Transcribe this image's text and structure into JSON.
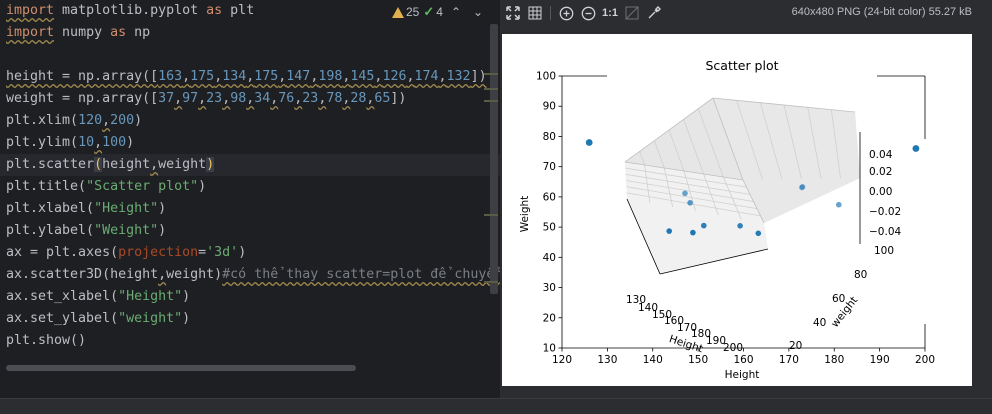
{
  "editor": {
    "inspections": {
      "warnings": "25",
      "weak_warnings": "4"
    },
    "lines": [
      {
        "segments": [
          {
            "t": "import",
            "c": "kw warn"
          },
          {
            "t": " matplotlib.pyplot ",
            "c": ""
          },
          {
            "t": "as",
            "c": "kw"
          },
          {
            "t": " plt",
            "c": ""
          }
        ]
      },
      {
        "segments": [
          {
            "t": "import",
            "c": "kw warn"
          },
          {
            "t": " numpy ",
            "c": ""
          },
          {
            "t": "as",
            "c": "kw"
          },
          {
            "t": " np",
            "c": ""
          }
        ]
      },
      {
        "segments": []
      },
      {
        "segments": [
          {
            "t": "height = np.array([",
            "c": "warn"
          },
          {
            "t": "163",
            "c": "num warn"
          },
          {
            "t": ",",
            "c": "warn"
          },
          {
            "t": "175",
            "c": "num warn"
          },
          {
            "t": ",",
            "c": "warn"
          },
          {
            "t": "134",
            "c": "num warn"
          },
          {
            "t": ",",
            "c": "warn"
          },
          {
            "t": "175",
            "c": "num warn"
          },
          {
            "t": ",",
            "c": "warn"
          },
          {
            "t": "147",
            "c": "num warn"
          },
          {
            "t": ",",
            "c": "warn"
          },
          {
            "t": "198",
            "c": "num warn"
          },
          {
            "t": ",",
            "c": "warn"
          },
          {
            "t": "145",
            "c": "num warn"
          },
          {
            "t": ",",
            "c": "warn"
          },
          {
            "t": "126",
            "c": "num warn"
          },
          {
            "t": ",",
            "c": "warn"
          },
          {
            "t": "174",
            "c": "num warn"
          },
          {
            "t": ",",
            "c": "warn"
          },
          {
            "t": "132",
            "c": "num warn"
          },
          {
            "t": "])",
            "c": "warn"
          }
        ]
      },
      {
        "segments": [
          {
            "t": "weight = np.array([",
            "c": ""
          },
          {
            "t": "37",
            "c": "num"
          },
          {
            "t": ",",
            "c": "warn"
          },
          {
            "t": "97",
            "c": "num"
          },
          {
            "t": ",",
            "c": "warn"
          },
          {
            "t": "23",
            "c": "num"
          },
          {
            "t": ",",
            "c": "warn"
          },
          {
            "t": "98",
            "c": "num"
          },
          {
            "t": ",",
            "c": "warn"
          },
          {
            "t": "34",
            "c": "num"
          },
          {
            "t": ",",
            "c": "warn"
          },
          {
            "t": "76",
            "c": "num"
          },
          {
            "t": ",",
            "c": "warn"
          },
          {
            "t": "23",
            "c": "num"
          },
          {
            "t": ",",
            "c": "warn"
          },
          {
            "t": "78",
            "c": "num"
          },
          {
            "t": ",",
            "c": "warn"
          },
          {
            "t": "28",
            "c": "num"
          },
          {
            "t": ",",
            "c": "warn"
          },
          {
            "t": "65",
            "c": "num"
          },
          {
            "t": "])",
            "c": ""
          }
        ]
      },
      {
        "segments": [
          {
            "t": "plt.xlim(",
            "c": ""
          },
          {
            "t": "120",
            "c": "num"
          },
          {
            "t": ",",
            "c": "warn"
          },
          {
            "t": "200",
            "c": "num"
          },
          {
            "t": ")",
            "c": ""
          }
        ]
      },
      {
        "segments": [
          {
            "t": "plt.ylim(",
            "c": ""
          },
          {
            "t": "10",
            "c": "num"
          },
          {
            "t": ",",
            "c": "warn"
          },
          {
            "t": "100",
            "c": "num"
          },
          {
            "t": ")",
            "c": ""
          }
        ]
      },
      {
        "segments": [
          {
            "t": "plt.scatter",
            "c": ""
          },
          {
            "t": "(",
            "c": "paren-hl"
          },
          {
            "t": "height",
            "c": ""
          },
          {
            "t": ",",
            "c": "warn"
          },
          {
            "t": "weight",
            "c": ""
          },
          {
            "t": ")",
            "c": "paren-hl"
          }
        ],
        "highlight": true
      },
      {
        "segments": [
          {
            "t": "plt.title(",
            "c": ""
          },
          {
            "t": "\"Scatter plot\"",
            "c": "str"
          },
          {
            "t": ")",
            "c": ""
          }
        ]
      },
      {
        "segments": [
          {
            "t": "plt.xlabel(",
            "c": ""
          },
          {
            "t": "\"Height\"",
            "c": "str"
          },
          {
            "t": ")",
            "c": ""
          }
        ]
      },
      {
        "segments": [
          {
            "t": "plt.ylabel(",
            "c": ""
          },
          {
            "t": "\"Weight\"",
            "c": "str"
          },
          {
            "t": ")",
            "c": ""
          }
        ]
      },
      {
        "segments": [
          {
            "t": "ax = plt.axes(",
            "c": ""
          },
          {
            "t": "projection",
            "c": "kwarg"
          },
          {
            "t": "=",
            "c": ""
          },
          {
            "t": "'3d'",
            "c": "str"
          },
          {
            "t": ")",
            "c": ""
          }
        ]
      },
      {
        "segments": [
          {
            "t": "ax.scatter3D(height",
            "c": ""
          },
          {
            "t": ",",
            "c": "warn"
          },
          {
            "t": "weight)",
            "c": ""
          },
          {
            "t": "#có thể thay scatter=plot để chuyển",
            "c": "cmt warn"
          }
        ]
      },
      {
        "segments": [
          {
            "t": "ax.set_xlabel(",
            "c": ""
          },
          {
            "t": "\"Height\"",
            "c": "str"
          },
          {
            "t": ")",
            "c": ""
          }
        ]
      },
      {
        "segments": [
          {
            "t": "ax.set_ylabel(",
            "c": ""
          },
          {
            "t": "\"weight\"",
            "c": "str"
          },
          {
            "t": ")",
            "c": ""
          }
        ]
      },
      {
        "segments": [
          {
            "t": "plt.show()",
            "c": ""
          }
        ]
      }
    ]
  },
  "viewer": {
    "image_info": "640x480 PNG (24-bit color) 55.27 kB",
    "zoom_label": "1:1",
    "toolbar_icons": [
      "fit-icon",
      "grid-icon",
      "zoom-in-icon",
      "zoom-out-icon",
      "actual-size-icon",
      "background-icon",
      "color-picker-icon"
    ]
  },
  "chart_data": [
    {
      "type": "scatter",
      "title": "Scatter plot",
      "xlabel": "Height",
      "ylabel": "Weight",
      "xlim": [
        120,
        200
      ],
      "ylim": [
        10,
        100
      ],
      "x_ticks": [
        "120",
        "130",
        "140",
        "150",
        "160",
        "170",
        "180",
        "190",
        "200"
      ],
      "y_ticks": [
        "10",
        "20",
        "30",
        "40",
        "50",
        "60",
        "70",
        "80",
        "90",
        "100"
      ],
      "points": [
        {
          "x": 126,
          "y": 78
        },
        {
          "x": 198,
          "y": 76
        }
      ],
      "color": "#1f77b4"
    },
    {
      "type": "scatter",
      "projection": "3d",
      "xlabel": "Height",
      "ylabel": "weight",
      "x_ticks": [
        "130",
        "140",
        "150",
        "160",
        "170",
        "180",
        "190",
        "200"
      ],
      "y_ticks": [
        "20",
        "40",
        "60",
        "80",
        "100"
      ],
      "z_ticks": [
        "0.04",
        "0.02",
        "0.00",
        "−0.02",
        "−0.04"
      ],
      "points": [
        {
          "x": 163,
          "y": 37
        },
        {
          "x": 175,
          "y": 97
        },
        {
          "x": 134,
          "y": 23
        },
        {
          "x": 175,
          "y": 98
        },
        {
          "x": 147,
          "y": 34
        },
        {
          "x": 198,
          "y": 76
        },
        {
          "x": 145,
          "y": 23
        },
        {
          "x": 126,
          "y": 78
        },
        {
          "x": 174,
          "y": 28
        },
        {
          "x": 132,
          "y": 65
        }
      ],
      "color": "#1f77b4"
    }
  ]
}
